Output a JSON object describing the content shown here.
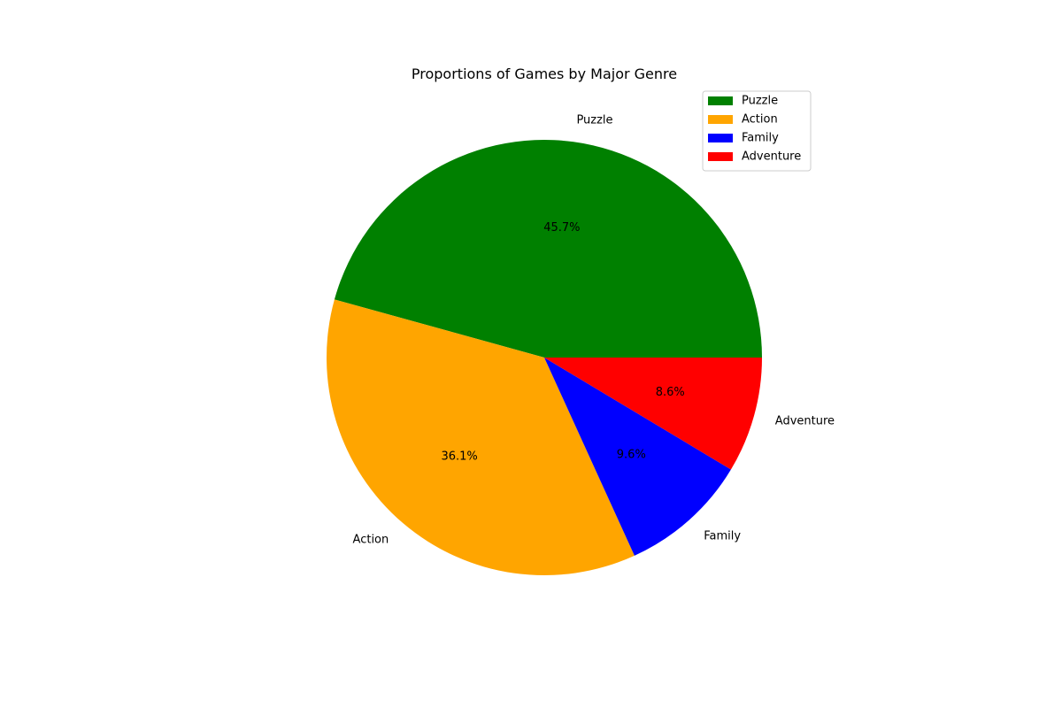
{
  "chart_data": {
    "type": "pie",
    "title": "Proportions of Games by Major Genre",
    "start_angle_deg": 0,
    "direction": "counterclockwise",
    "slices": [
      {
        "label": "Puzzle",
        "percent": 45.7,
        "pct_text": "45.7%",
        "color": "#008000"
      },
      {
        "label": "Action",
        "percent": 36.1,
        "pct_text": "36.1%",
        "color": "#ffa500"
      },
      {
        "label": "Family",
        "percent": 9.6,
        "pct_text": "9.6%",
        "color": "#0000ff"
      },
      {
        "label": "Adventure",
        "percent": 8.6,
        "pct_text": "8.6%",
        "color": "#ff0000"
      }
    ],
    "legend": {
      "placement": "upper-right",
      "entries": [
        "Puzzle",
        "Action",
        "Family",
        "Adventure"
      ]
    }
  }
}
